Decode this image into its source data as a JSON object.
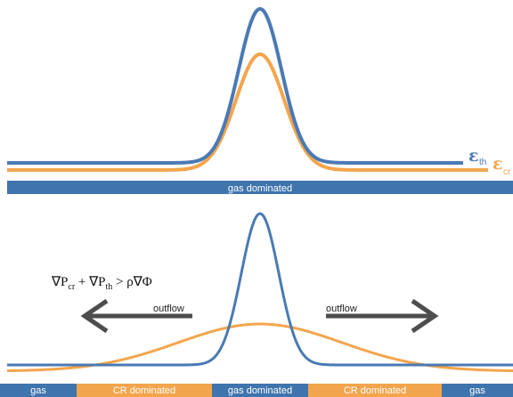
{
  "colors": {
    "thermal": "#4a7ab4",
    "cosmic_ray": "#f3a54d",
    "bar_gas": "#3f74ad",
    "bar_cr": "#f3a54d",
    "arrow": "#4d4d4d",
    "text_on_bar": "#ffffff"
  },
  "top_panel": {
    "legend_eps_symbol": "ε",
    "legend_thermal_subscript": "th",
    "legend_cr_subscript": "cr",
    "bar_label": "gas dominated"
  },
  "bottom_panel": {
    "equation": {
      "nabla_p": "∇P",
      "cr_sub": "cr",
      "plus": " + ",
      "th_sub": "th",
      "gt": " > ",
      "rhs": "ρ∇Φ"
    },
    "left_arrow_label": "outflow",
    "right_arrow_label": "outflow",
    "bar_segments": [
      {
        "label": "gas",
        "kind": "gas"
      },
      {
        "label": "CR dominated",
        "kind": "cr"
      },
      {
        "label": "gas dominated",
        "kind": "gas"
      },
      {
        "label": "CR dominated",
        "kind": "cr"
      },
      {
        "label": "gas",
        "kind": "gas"
      }
    ]
  }
}
